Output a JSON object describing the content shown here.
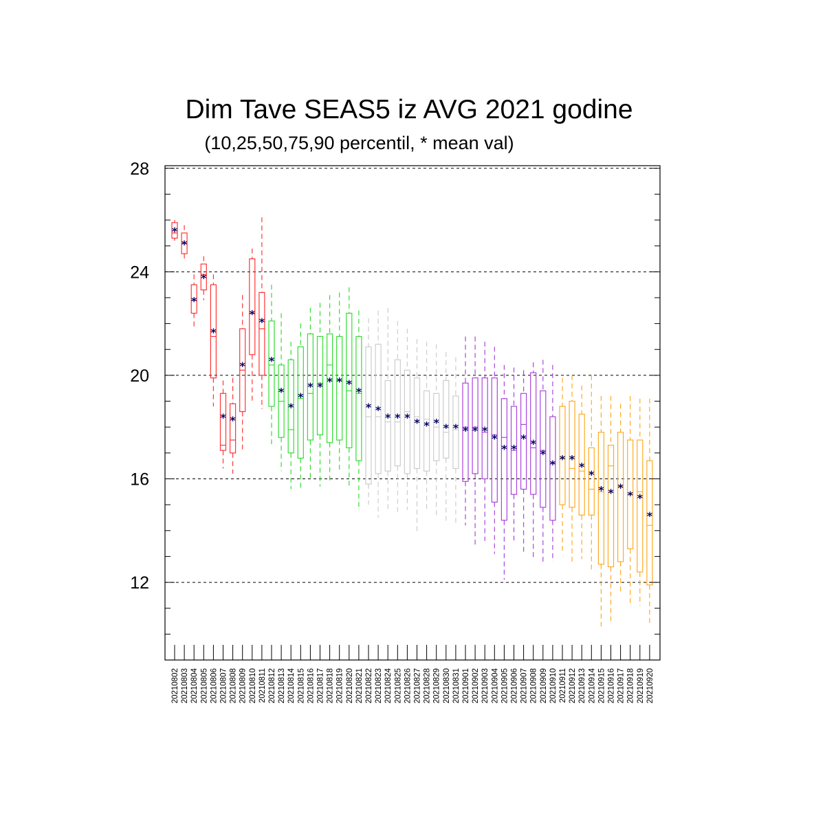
{
  "chart_data": {
    "type": "box",
    "title": "Dim Tave SEAS5 iz AVG 2021 godine",
    "subtitle": "(10,25,50,75,90 percentil, * mean val)",
    "xlabel": "",
    "ylabel": "",
    "ylim": [
      9,
      28.1
    ],
    "yticks": [
      "12",
      "16",
      "20",
      "24",
      "28"
    ],
    "ytick_values": [
      12,
      16,
      20,
      24,
      28
    ],
    "y_minor_step": 1,
    "grid": "horizontal dashed at major ticks",
    "categories": [
      "20210802",
      "20210803",
      "20210804",
      "20210805",
      "20210806",
      "20210807",
      "20210808",
      "20210809",
      "20210810",
      "20210811",
      "20210812",
      "20210813",
      "20210814",
      "20210815",
      "20210816",
      "20210817",
      "20210818",
      "20210819",
      "20210820",
      "20210821",
      "20210822",
      "20210823",
      "20210824",
      "20210825",
      "20210826",
      "20210827",
      "20210828",
      "20210829",
      "20210830",
      "20210831",
      "20210901",
      "20210902",
      "20210903",
      "20210904",
      "20210905",
      "20210906",
      "20210907",
      "20210908",
      "20210909",
      "20210910",
      "20210911",
      "20210912",
      "20210913",
      "20210914",
      "20210915",
      "20210916",
      "20210917",
      "20210918",
      "20210919",
      "20210920"
    ],
    "color_groups": [
      {
        "color": "#ff3333",
        "from": 0,
        "to": 9
      },
      {
        "color": "#33dd33",
        "from": 10,
        "to": 19
      },
      {
        "color": "#cccccc",
        "from": 20,
        "to": 29
      },
      {
        "color": "#aa44dd",
        "from": 30,
        "to": 39
      },
      {
        "color": "#ffaa22",
        "from": 40,
        "to": 49
      }
    ],
    "mean_marker_color": "#000066",
    "series": [
      {
        "p10": 25.2,
        "p25": 25.3,
        "p50": 25.5,
        "p75": 25.9,
        "p90": 26.0,
        "mean": 25.6
      },
      {
        "p10": 24.5,
        "p25": 24.7,
        "p50": 25.1,
        "p75": 25.5,
        "p90": 25.8,
        "mean": 25.1
      },
      {
        "p10": 21.8,
        "p25": 22.4,
        "p50": 22.9,
        "p75": 23.5,
        "p90": 23.9,
        "mean": 22.9
      },
      {
        "p10": 22.9,
        "p25": 23.3,
        "p50": 23.9,
        "p75": 24.3,
        "p90": 24.6,
        "mean": 23.8
      },
      {
        "p10": 18.8,
        "p25": 19.9,
        "p50": 21.5,
        "p75": 23.5,
        "p90": 23.9,
        "mean": 21.7
      },
      {
        "p10": 16.4,
        "p25": 17.1,
        "p50": 17.3,
        "p75": 19.3,
        "p90": 19.8,
        "mean": 18.4
      },
      {
        "p10": 16.2,
        "p25": 17.0,
        "p50": 17.5,
        "p75": 18.9,
        "p90": 19.9,
        "mean": 18.3
      },
      {
        "p10": 17.1,
        "p25": 18.6,
        "p50": 20.2,
        "p75": 21.8,
        "p90": 23.1,
        "mean": 20.4
      },
      {
        "p10": 19.0,
        "p25": 20.8,
        "p50": 22.4,
        "p75": 24.5,
        "p90": 24.9,
        "mean": 22.4
      },
      {
        "p10": 18.7,
        "p25": 20.0,
        "p50": 21.8,
        "p75": 23.2,
        "p90": 26.1,
        "mean": 22.1
      },
      {
        "p10": 17.3,
        "p25": 18.8,
        "p50": 20.4,
        "p75": 22.1,
        "p90": 23.5,
        "mean": 20.6
      },
      {
        "p10": 16.3,
        "p25": 17.6,
        "p50": 19.0,
        "p75": 20.4,
        "p90": 22.4,
        "mean": 19.4
      },
      {
        "p10": 15.6,
        "p25": 17.0,
        "p50": 17.9,
        "p75": 20.6,
        "p90": 21.3,
        "mean": 18.8
      },
      {
        "p10": 15.6,
        "p25": 16.8,
        "p50": 19.1,
        "p75": 21.1,
        "p90": 22.0,
        "mean": 19.2
      },
      {
        "p10": 15.9,
        "p25": 17.5,
        "p50": 19.3,
        "p75": 21.6,
        "p90": 22.6,
        "mean": 19.6
      },
      {
        "p10": 15.7,
        "p25": 17.7,
        "p50": 19.7,
        "p75": 21.5,
        "p90": 22.8,
        "mean": 19.6
      },
      {
        "p10": 15.9,
        "p25": 17.4,
        "p50": 20.4,
        "p75": 21.6,
        "p90": 23.1,
        "mean": 19.8
      },
      {
        "p10": 16.3,
        "p25": 17.5,
        "p50": 19.8,
        "p75": 21.5,
        "p90": 23.2,
        "mean": 19.8
      },
      {
        "p10": 15.6,
        "p25": 17.2,
        "p50": 19.4,
        "p75": 22.4,
        "p90": 23.4,
        "mean": 19.7
      },
      {
        "p10": 14.9,
        "p25": 16.7,
        "p50": 19.3,
        "p75": 21.5,
        "p90": 22.5,
        "mean": 19.4
      },
      {
        "p10": 15.0,
        "p25": 15.8,
        "p50": 18.4,
        "p75": 21.1,
        "p90": 22.2,
        "mean": 18.8
      },
      {
        "p10": 14.5,
        "p25": 16.2,
        "p50": 18.4,
        "p75": 21.2,
        "p90": 22.5,
        "mean": 18.7
      },
      {
        "p10": 14.7,
        "p25": 16.3,
        "p50": 18.2,
        "p75": 19.8,
        "p90": 22.6,
        "mean": 18.4
      },
      {
        "p10": 14.7,
        "p25": 16.5,
        "p50": 18.2,
        "p75": 20.6,
        "p90": 22.1,
        "mean": 18.4
      },
      {
        "p10": 14.8,
        "p25": 16.2,
        "p50": 18.6,
        "p75": 20.2,
        "p90": 21.8,
        "mean": 18.4
      },
      {
        "p10": 13.9,
        "p25": 16.4,
        "p50": 18.4,
        "p75": 19.9,
        "p90": 21.4,
        "mean": 18.2
      },
      {
        "p10": 14.8,
        "p25": 16.3,
        "p50": 18.3,
        "p75": 19.4,
        "p90": 21.3,
        "mean": 18.1
      },
      {
        "p10": 14.6,
        "p25": 16.7,
        "p50": 18.0,
        "p75": 19.3,
        "p90": 21.2,
        "mean": 18.2
      },
      {
        "p10": 14.3,
        "p25": 16.8,
        "p50": 17.8,
        "p75": 19.8,
        "p90": 20.9,
        "mean": 18.0
      },
      {
        "p10": 14.3,
        "p25": 16.4,
        "p50": 17.9,
        "p75": 19.2,
        "p90": 20.7,
        "mean": 18.0
      },
      {
        "p10": 14.2,
        "p25": 15.9,
        "p50": 18.0,
        "p75": 19.7,
        "p90": 21.5,
        "mean": 17.9
      },
      {
        "p10": 13.4,
        "p25": 16.2,
        "p50": 18.0,
        "p75": 19.9,
        "p90": 21.5,
        "mean": 17.9
      },
      {
        "p10": 13.6,
        "p25": 16.0,
        "p50": 17.8,
        "p75": 19.9,
        "p90": 21.3,
        "mean": 17.9
      },
      {
        "p10": 13.1,
        "p25": 15.1,
        "p50": 17.7,
        "p75": 19.9,
        "p90": 21.1,
        "mean": 17.6
      },
      {
        "p10": 12.1,
        "p25": 14.4,
        "p50": 17.6,
        "p75": 19.1,
        "p90": 20.4,
        "mean": 17.2
      },
      {
        "p10": 13.6,
        "p25": 15.4,
        "p50": 17.1,
        "p75": 18.8,
        "p90": 20.3,
        "mean": 17.2
      },
      {
        "p10": 13.1,
        "p25": 15.6,
        "p50": 18.1,
        "p75": 19.3,
        "p90": 20.2,
        "mean": 17.6
      },
      {
        "p10": 12.9,
        "p25": 15.4,
        "p50": 17.2,
        "p75": 20.1,
        "p90": 20.5,
        "mean": 17.4
      },
      {
        "p10": 12.8,
        "p25": 14.9,
        "p50": 17.1,
        "p75": 19.4,
        "p90": 20.6,
        "mean": 17.0
      },
      {
        "p10": 12.8,
        "p25": 14.4,
        "p50": 16.6,
        "p75": 18.4,
        "p90": 20.4,
        "mean": 16.6
      },
      {
        "p10": 13.2,
        "p25": 15.0,
        "p50": 16.8,
        "p75": 18.8,
        "p90": 19.9,
        "mean": 16.8
      },
      {
        "p10": 12.8,
        "p25": 14.9,
        "p50": 16.4,
        "p75": 19.0,
        "p90": 20.0,
        "mean": 16.8
      },
      {
        "p10": 12.9,
        "p25": 14.6,
        "p50": 16.3,
        "p75": 18.5,
        "p90": 19.6,
        "mean": 16.5
      },
      {
        "p10": 12.5,
        "p25": 14.6,
        "p50": 15.6,
        "p75": 17.2,
        "p90": 20.0,
        "mean": 16.2
      },
      {
        "p10": 10.3,
        "p25": 12.7,
        "p50": 15.5,
        "p75": 17.8,
        "p90": 19.2,
        "mean": 15.6
      },
      {
        "p10": 10.5,
        "p25": 12.6,
        "p50": 16.5,
        "p75": 17.3,
        "p90": 19.2,
        "mean": 15.5
      },
      {
        "p10": 11.6,
        "p25": 12.8,
        "p50": 15.7,
        "p75": 17.8,
        "p90": 18.9,
        "mean": 15.7
      },
      {
        "p10": 11.2,
        "p25": 13.3,
        "p50": 15.4,
        "p75": 17.5,
        "p90": 19.2,
        "mean": 15.4
      },
      {
        "p10": 11.1,
        "p25": 12.4,
        "p50": 15.5,
        "p75": 17.5,
        "p90": 19.1,
        "mean": 15.3
      },
      {
        "p10": 10.4,
        "p25": 11.9,
        "p50": 14.2,
        "p75": 16.7,
        "p90": 19.1,
        "mean": 14.6
      }
    ]
  }
}
